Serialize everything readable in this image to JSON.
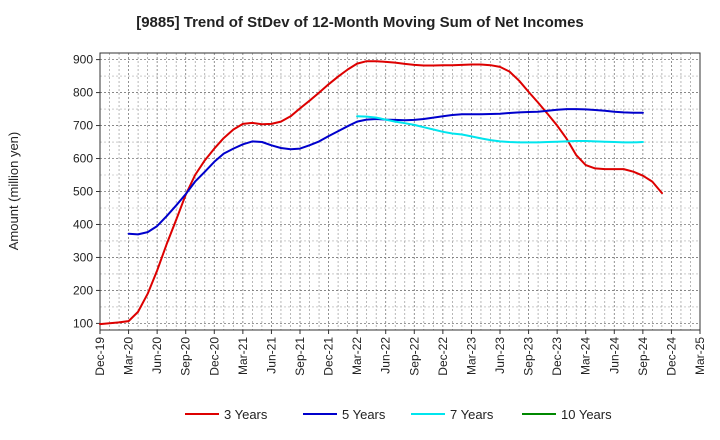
{
  "chart_data": {
    "type": "line",
    "title": "[9885]  Trend of StDev of 12-Month Moving Sum of Net Incomes",
    "ylabel": "Amount (million yen)",
    "xlabel": "",
    "ylim": [
      80,
      920
    ],
    "yticks": [
      100,
      200,
      300,
      400,
      500,
      600,
      700,
      800,
      900
    ],
    "x_categories": [
      "Dec-19",
      "Mar-20",
      "Jun-20",
      "Sep-20",
      "Dec-20",
      "Mar-21",
      "Jun-21",
      "Sep-21",
      "Dec-21",
      "Mar-22",
      "Jun-22",
      "Sep-22",
      "Dec-22",
      "Mar-23",
      "Jun-23",
      "Sep-23",
      "Dec-23",
      "Mar-24",
      "Jun-24",
      "Sep-24",
      "Dec-24",
      "Mar-25"
    ],
    "grid": true,
    "legend_position": "bottom",
    "series": [
      {
        "name": "3 Years",
        "color": "#dd0000",
        "points": [
          [
            0,
            98
          ],
          [
            0.67,
            103
          ],
          [
            1,
            107
          ],
          [
            1.33,
            135
          ],
          [
            1.67,
            190
          ],
          [
            2,
            260
          ],
          [
            2.33,
            340
          ],
          [
            2.67,
            415
          ],
          [
            3,
            490
          ],
          [
            3.33,
            550
          ],
          [
            3.67,
            595
          ],
          [
            4,
            630
          ],
          [
            4.33,
            662
          ],
          [
            4.67,
            688
          ],
          [
            5,
            705
          ],
          [
            5.33,
            708
          ],
          [
            5.67,
            704
          ],
          [
            6,
            705
          ],
          [
            6.33,
            712
          ],
          [
            6.67,
            728
          ],
          [
            7,
            752
          ],
          [
            7.33,
            775
          ],
          [
            7.67,
            800
          ],
          [
            8,
            825
          ],
          [
            8.33,
            848
          ],
          [
            8.67,
            870
          ],
          [
            9,
            888
          ],
          [
            9.33,
            895
          ],
          [
            9.67,
            895
          ],
          [
            10,
            893
          ],
          [
            10.33,
            891
          ],
          [
            10.67,
            887
          ],
          [
            11,
            884
          ],
          [
            11.33,
            882
          ],
          [
            11.67,
            882
          ],
          [
            12,
            883
          ],
          [
            12.33,
            883
          ],
          [
            12.67,
            884
          ],
          [
            13,
            885
          ],
          [
            13.33,
            885
          ],
          [
            13.67,
            883
          ],
          [
            14,
            878
          ],
          [
            14.33,
            864
          ],
          [
            14.67,
            836
          ],
          [
            15,
            802
          ],
          [
            15.33,
            770
          ],
          [
            15.67,
            735
          ],
          [
            16,
            700
          ],
          [
            16.33,
            660
          ],
          [
            16.67,
            610
          ],
          [
            17,
            580
          ],
          [
            17.33,
            570
          ],
          [
            17.67,
            568
          ],
          [
            18,
            568
          ],
          [
            18.33,
            568
          ],
          [
            18.67,
            560
          ],
          [
            19,
            548
          ],
          [
            19.33,
            530
          ],
          [
            19.67,
            495
          ]
        ]
      },
      {
        "name": "5 Years",
        "color": "#0000cc",
        "points": [
          [
            1,
            372
          ],
          [
            1.33,
            370
          ],
          [
            1.67,
            377
          ],
          [
            2,
            395
          ],
          [
            2.33,
            425
          ],
          [
            2.67,
            458
          ],
          [
            3,
            492
          ],
          [
            3.33,
            530
          ],
          [
            3.67,
            560
          ],
          [
            4,
            590
          ],
          [
            4.33,
            615
          ],
          [
            4.67,
            630
          ],
          [
            5,
            643
          ],
          [
            5.33,
            652
          ],
          [
            5.67,
            650
          ],
          [
            6,
            640
          ],
          [
            6.33,
            632
          ],
          [
            6.67,
            628
          ],
          [
            7,
            630
          ],
          [
            7.33,
            640
          ],
          [
            7.67,
            652
          ],
          [
            8,
            668
          ],
          [
            8.33,
            683
          ],
          [
            8.67,
            698
          ],
          [
            9,
            712
          ],
          [
            9.33,
            718
          ],
          [
            9.67,
            720
          ],
          [
            10,
            718
          ],
          [
            10.33,
            717
          ],
          [
            10.67,
            716
          ],
          [
            11,
            717
          ],
          [
            11.33,
            720
          ],
          [
            11.67,
            724
          ],
          [
            12,
            728
          ],
          [
            12.33,
            732
          ],
          [
            12.67,
            734
          ],
          [
            13,
            734
          ],
          [
            13.33,
            734
          ],
          [
            13.67,
            735
          ],
          [
            14,
            736
          ],
          [
            14.33,
            738
          ],
          [
            14.67,
            740
          ],
          [
            15,
            741
          ],
          [
            15.33,
            742
          ],
          [
            15.67,
            745
          ],
          [
            16,
            748
          ],
          [
            16.33,
            750
          ],
          [
            16.67,
            750
          ],
          [
            17,
            749
          ],
          [
            17.33,
            747
          ],
          [
            17.67,
            745
          ],
          [
            18,
            742
          ],
          [
            18.33,
            740
          ],
          [
            18.67,
            739
          ],
          [
            19,
            739
          ]
        ]
      },
      {
        "name": "7 Years",
        "color": "#00e5ee",
        "points": [
          [
            9,
            728
          ],
          [
            9.33,
            727
          ],
          [
            9.67,
            724
          ],
          [
            10,
            718
          ],
          [
            10.33,
            712
          ],
          [
            10.67,
            707
          ],
          [
            11,
            702
          ],
          [
            11.33,
            695
          ],
          [
            11.67,
            688
          ],
          [
            12,
            681
          ],
          [
            12.33,
            676
          ],
          [
            12.67,
            673
          ],
          [
            13,
            667
          ],
          [
            13.33,
            661
          ],
          [
            13.67,
            656
          ],
          [
            14,
            652
          ],
          [
            14.33,
            650
          ],
          [
            14.67,
            649
          ],
          [
            15,
            649
          ],
          [
            15.33,
            649
          ],
          [
            15.67,
            650
          ],
          [
            16,
            651
          ],
          [
            16.33,
            652
          ],
          [
            16.67,
            653
          ],
          [
            17,
            653
          ],
          [
            17.33,
            652
          ],
          [
            17.67,
            651
          ],
          [
            18,
            650
          ],
          [
            18.33,
            649
          ],
          [
            18.67,
            649
          ],
          [
            19,
            650
          ]
        ]
      },
      {
        "name": "10 Years",
        "color": "#008800",
        "points": []
      }
    ]
  }
}
